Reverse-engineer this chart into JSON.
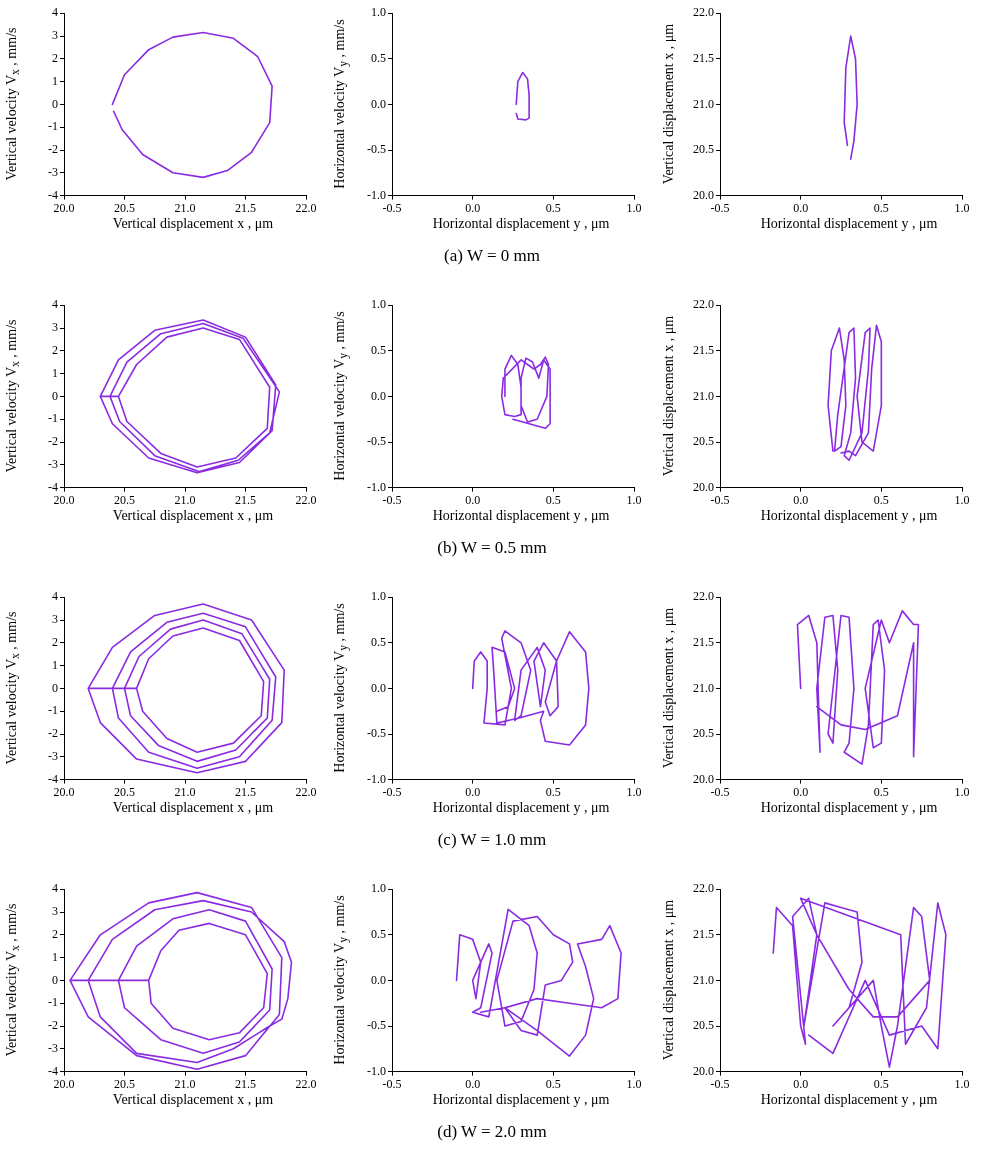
{
  "chart_data": [
    {
      "type": "line",
      "xlabel": "Vertical displacement x , μm",
      "ylabel": "Vertical velocity V$_{x}$ , mm/s",
      "xlim": [
        20,
        22
      ],
      "ylim": [
        -4,
        4
      ],
      "xticks": [
        {
          "value": 20,
          "label": "20.0"
        },
        {
          "value": 20.5,
          "label": "20.5"
        },
        {
          "value": 21,
          "label": "21.0"
        },
        {
          "value": 21.5,
          "label": "21.5"
        },
        {
          "value": 22,
          "label": "22.0"
        }
      ],
      "yticks": [
        {
          "value": -4,
          "label": "-4"
        },
        {
          "value": -3,
          "label": "-3"
        },
        {
          "value": -2,
          "label": "-2"
        },
        {
          "value": -1,
          "label": "-1"
        },
        {
          "value": 0,
          "label": "0"
        },
        {
          "value": 1,
          "label": "1"
        },
        {
          "value": 2,
          "label": "2"
        },
        {
          "value": 3,
          "label": "3"
        },
        {
          "value": 4,
          "label": "4"
        }
      ],
      "grid": false,
      "legend": false,
      "marker": "none",
      "line_style": "solid",
      "series": [
        {
          "color": "#8a2be2",
          "x": [
            20.4,
            20.5,
            20.7,
            20.9,
            21.15,
            21.4,
            21.6,
            21.72,
            21.7,
            21.55,
            21.35,
            21.15,
            20.9,
            20.65,
            20.48,
            20.41
          ],
          "values": [
            0,
            1.3,
            2.4,
            2.95,
            3.15,
            2.9,
            2.1,
            0.8,
            -0.8,
            -2.1,
            -2.9,
            -3.2,
            -3.0,
            -2.2,
            -1.1,
            -0.3
          ]
        }
      ]
    },
    {
      "type": "line",
      "xlabel": "Horizontal displacement y , μm",
      "ylabel": "Horizontal velocity V$_{y}$ , mm/s",
      "xlim": [
        -0.5,
        1
      ],
      "ylim": [
        -1,
        1
      ],
      "xticks": [
        {
          "value": -0.5,
          "label": "-0.5"
        },
        {
          "value": 0,
          "label": "0.0"
        },
        {
          "value": 0.5,
          "label": "0.5"
        },
        {
          "value": 1,
          "label": "1.0"
        }
      ],
      "yticks": [
        {
          "value": -1,
          "label": "-1.0"
        },
        {
          "value": -0.5,
          "label": "-0.5"
        },
        {
          "value": 0,
          "label": "0.0"
        },
        {
          "value": 0.5,
          "label": "0.5"
        },
        {
          "value": 1,
          "label": "1.0"
        }
      ],
      "grid": false,
      "legend": false,
      "marker": "none",
      "line_style": "solid",
      "annotations": [
        "(a) W = 0 mm"
      ],
      "series": [
        {
          "color": "#8a2be2",
          "x": [
            0.27,
            0.28,
            0.31,
            0.34,
            0.35,
            0.35,
            0.33,
            0.28,
            0.27
          ],
          "values": [
            0,
            0.25,
            0.35,
            0.28,
            0.1,
            -0.15,
            -0.17,
            -0.16,
            -0.1
          ]
        }
      ]
    },
    {
      "type": "line",
      "xlabel": "Horizontal displacement y , μm",
      "ylabel": "Vertical displacement x , μm",
      "xlim": [
        -0.5,
        1
      ],
      "ylim": [
        20,
        22
      ],
      "xticks": [
        {
          "value": -0.5,
          "label": "-0.5"
        },
        {
          "value": 0,
          "label": "0.0"
        },
        {
          "value": 0.5,
          "label": "0.5"
        },
        {
          "value": 1,
          "label": "1.0"
        }
      ],
      "yticks": [
        {
          "value": 20,
          "label": "20.0"
        },
        {
          "value": 20.5,
          "label": "20.5"
        },
        {
          "value": 21,
          "label": "21.0"
        },
        {
          "value": 21.5,
          "label": "21.5"
        },
        {
          "value": 22,
          "label": "22.0"
        }
      ],
      "grid": false,
      "legend": false,
      "marker": "none",
      "line_style": "solid",
      "series": [
        {
          "color": "#8a2be2",
          "x": [
            0.29,
            0.27,
            0.28,
            0.31,
            0.34,
            0.35,
            0.33,
            0.31
          ],
          "values": [
            20.55,
            20.8,
            21.4,
            21.75,
            21.5,
            21.0,
            20.6,
            20.4
          ]
        }
      ]
    },
    {
      "type": "line",
      "xlabel": "Vertical displacement x , μm",
      "ylabel": "Vertical velocity V$_{x}$ , mm/s",
      "xlim": [
        20,
        22
      ],
      "ylim": [
        -4,
        4
      ],
      "xticks": [
        {
          "value": 20,
          "label": "20.0"
        },
        {
          "value": 20.5,
          "label": "20.5"
        },
        {
          "value": 21,
          "label": "21.0"
        },
        {
          "value": 21.5,
          "label": "21.5"
        },
        {
          "value": 22,
          "label": "22.0"
        }
      ],
      "yticks": [
        {
          "value": -4,
          "label": "-4"
        },
        {
          "value": -3,
          "label": "-3"
        },
        {
          "value": -2,
          "label": "-2"
        },
        {
          "value": -1,
          "label": "-1"
        },
        {
          "value": 0,
          "label": "0"
        },
        {
          "value": 1,
          "label": "1"
        },
        {
          "value": 2,
          "label": "2"
        },
        {
          "value": 3,
          "label": "3"
        },
        {
          "value": 4,
          "label": "4"
        }
      ],
      "grid": false,
      "legend": false,
      "marker": "none",
      "line_style": "solid",
      "series": [
        {
          "color": "#8a2be2",
          "x": [
            20.3,
            20.45,
            20.75,
            21.15,
            21.5,
            21.75,
            21.72,
            21.45,
            21.1,
            20.7,
            20.4,
            20.3,
            20.45,
            20.6,
            20.85,
            21.15,
            21.45,
            21.7,
            21.68,
            21.42,
            21.1,
            20.8,
            20.52,
            20.45,
            20.38,
            20.52,
            20.8,
            21.15,
            21.48,
            21.78,
            21.7,
            21.44,
            21.12,
            20.75,
            20.46,
            20.38
          ],
          "values": [
            0,
            1.6,
            2.9,
            3.35,
            2.6,
            0.5,
            -1.5,
            -2.9,
            -3.35,
            -2.7,
            -1.2,
            0,
            0,
            1.4,
            2.6,
            3.0,
            2.5,
            0.4,
            -1.4,
            -2.7,
            -3.1,
            -2.5,
            -1.1,
            0,
            0,
            1.5,
            2.75,
            3.2,
            2.55,
            0.2,
            -1.6,
            -2.8,
            -3.3,
            -2.6,
            -1.1,
            0
          ]
        }
      ]
    },
    {
      "type": "line",
      "xlabel": "Horizontal displacement y , μm",
      "ylabel": "Horizontal velocity V$_{y}$ , mm/s",
      "xlim": [
        -0.5,
        1
      ],
      "ylim": [
        -1,
        1
      ],
      "xticks": [
        {
          "value": -0.5,
          "label": "-0.5"
        },
        {
          "value": 0,
          "label": "0.0"
        },
        {
          "value": 0.5,
          "label": "0.5"
        },
        {
          "value": 1,
          "label": "1.0"
        }
      ],
      "yticks": [
        {
          "value": -1,
          "label": "-1.0"
        },
        {
          "value": -0.5,
          "label": "-0.5"
        },
        {
          "value": 0,
          "label": "0.0"
        },
        {
          "value": 0.5,
          "label": "0.5"
        },
        {
          "value": 1,
          "label": "1.0"
        }
      ],
      "grid": false,
      "legend": false,
      "marker": "none",
      "line_style": "solid",
      "annotations": [
        "(b) W = 0.5 mm"
      ],
      "series": [
        {
          "color": "#8a2be2",
          "x": [
            0.2,
            0.2,
            0.24,
            0.28,
            0.3,
            0.3,
            0.26,
            0.2,
            0.18,
            0.19,
            0.3,
            0.34,
            0.38,
            0.42,
            0.45,
            0.47,
            0.46,
            0.4,
            0.34,
            0.3,
            0.3,
            0.33,
            0.37,
            0.41,
            0.44,
            0.48,
            0.48,
            0.45,
            0.35,
            0.25
          ],
          "values": [
            0,
            0.3,
            0.45,
            0.35,
            0.1,
            -0.2,
            -0.22,
            -0.2,
            0,
            0.2,
            0.4,
            0.35,
            0.3,
            0.35,
            0.43,
            0.35,
            0,
            -0.25,
            -0.28,
            -0.1,
            0.2,
            0.42,
            0.38,
            0.2,
            0.4,
            0.3,
            -0.3,
            -0.35,
            -0.3,
            -0.25
          ]
        }
      ]
    },
    {
      "type": "line",
      "xlabel": "Horizontal displacement y , μm",
      "ylabel": "Vertical displacement x , μm",
      "xlim": [
        -0.5,
        1
      ],
      "ylim": [
        20,
        22
      ],
      "xticks": [
        {
          "value": -0.5,
          "label": "-0.5"
        },
        {
          "value": 0,
          "label": "0.0"
        },
        {
          "value": 0.5,
          "label": "0.5"
        },
        {
          "value": 1,
          "label": "1.0"
        }
      ],
      "yticks": [
        {
          "value": 20,
          "label": "20.0"
        },
        {
          "value": 20.5,
          "label": "20.5"
        },
        {
          "value": 21,
          "label": "21.0"
        },
        {
          "value": 21.5,
          "label": "21.5"
        },
        {
          "value": 22,
          "label": "22.0"
        }
      ],
      "grid": false,
      "legend": false,
      "marker": "none",
      "line_style": "solid",
      "series": [
        {
          "color": "#8a2be2",
          "x": [
            0.2,
            0.17,
            0.19,
            0.24,
            0.27,
            0.28,
            0.25,
            0.21,
            0.23,
            0.3,
            0.33,
            0.34,
            0.31,
            0.27,
            0.3,
            0.38,
            0.42,
            0.43,
            0.4,
            0.35,
            0.38,
            0.45,
            0.5,
            0.5,
            0.47,
            0.44,
            0.42,
            0.34,
            0.3,
            0.25
          ],
          "values": [
            20.4,
            20.9,
            21.5,
            21.75,
            21.4,
            20.9,
            20.45,
            20.4,
            20.8,
            21.7,
            21.75,
            21.2,
            20.6,
            20.35,
            20.3,
            20.6,
            21.3,
            21.75,
            21.7,
            21.0,
            20.5,
            20.4,
            20.9,
            21.6,
            21.78,
            21.3,
            20.6,
            20.35,
            20.4,
            20.38
          ]
        }
      ]
    },
    {
      "type": "line",
      "xlabel": "Vertical displacement x , μm",
      "ylabel": "Vertical velocity V$_{x}$ , mm/s",
      "xlim": [
        20,
        22
      ],
      "ylim": [
        -4,
        4
      ],
      "xticks": [
        {
          "value": 20,
          "label": "20.0"
        },
        {
          "value": 20.5,
          "label": "20.5"
        },
        {
          "value": 21,
          "label": "21.0"
        },
        {
          "value": 21.5,
          "label": "21.5"
        },
        {
          "value": 22,
          "label": "22.0"
        }
      ],
      "yticks": [
        {
          "value": -4,
          "label": "-4"
        },
        {
          "value": -3,
          "label": "-3"
        },
        {
          "value": -2,
          "label": "-2"
        },
        {
          "value": -1,
          "label": "-1"
        },
        {
          "value": 0,
          "label": "0"
        },
        {
          "value": 1,
          "label": "1"
        },
        {
          "value": 2,
          "label": "2"
        },
        {
          "value": 3,
          "label": "3"
        },
        {
          "value": 4,
          "label": "4"
        }
      ],
      "grid": false,
      "legend": false,
      "marker": "none",
      "line_style": "solid",
      "series": [
        {
          "color": "#8a2be2",
          "x": [
            20.2,
            20.4,
            20.75,
            21.15,
            21.55,
            21.82,
            21.8,
            21.5,
            21.1,
            20.6,
            20.3,
            20.2,
            20.6,
            20.7,
            20.9,
            21.15,
            21.45,
            21.65,
            21.63,
            21.4,
            21.1,
            20.85,
            20.65,
            20.6,
            20.4,
            20.55,
            20.85,
            21.15,
            21.5,
            21.75,
            21.72,
            21.45,
            21.1,
            20.7,
            20.45,
            20.4,
            20.5,
            20.62,
            20.88,
            21.15,
            21.47,
            21.7,
            21.68,
            21.42,
            21.1,
            20.78,
            20.55,
            20.5
          ],
          "values": [
            0,
            1.8,
            3.2,
            3.7,
            3.0,
            0.8,
            -1.5,
            -3.2,
            -3.7,
            -3.1,
            -1.5,
            0,
            0,
            1.3,
            2.3,
            2.65,
            2.1,
            0.3,
            -1.2,
            -2.4,
            -2.8,
            -2.2,
            -1.0,
            0,
            0,
            1.6,
            2.9,
            3.3,
            2.7,
            0.5,
            -1.4,
            -3.0,
            -3.5,
            -2.8,
            -1.3,
            0,
            0,
            1.4,
            2.6,
            3.0,
            2.4,
            0.4,
            -1.3,
            -2.7,
            -3.2,
            -2.5,
            -1.2,
            0
          ]
        }
      ]
    },
    {
      "type": "line",
      "xlabel": "Horizontal displacement y , μm",
      "ylabel": "Horizontal velocity V$_{y}$ , mm/s",
      "xlim": [
        -0.5,
        1
      ],
      "ylim": [
        -1,
        1
      ],
      "xticks": [
        {
          "value": -0.5,
          "label": "-0.5"
        },
        {
          "value": 0,
          "label": "0.0"
        },
        {
          "value": 0.5,
          "label": "0.5"
        },
        {
          "value": 1,
          "label": "1.0"
        }
      ],
      "yticks": [
        {
          "value": -1,
          "label": "-1.0"
        },
        {
          "value": -0.5,
          "label": "-0.5"
        },
        {
          "value": 0,
          "label": "0.0"
        },
        {
          "value": 0.5,
          "label": "0.5"
        },
        {
          "value": 1,
          "label": "1.0"
        }
      ],
      "grid": false,
      "legend": false,
      "marker": "none",
      "line_style": "solid",
      "annotations": [
        "(c) W = 1.0 mm"
      ],
      "series": [
        {
          "color": "#8a2be2",
          "x": [
            0,
            0.01,
            0.05,
            0.09,
            0.09,
            0.07,
            0.2,
            0.24,
            0.18,
            0.2,
            0.3,
            0.36,
            0.3,
            0.26,
            0.3,
            0.4,
            0.45,
            0.42,
            0.38,
            0.44,
            0.52,
            0.53,
            0.48,
            0.45,
            0.52,
            0.6,
            0.7,
            0.72,
            0.7,
            0.6,
            0.45,
            0.42,
            0.44,
            0.3,
            0.15,
            0.13,
            0.12,
            0.2,
            0.26,
            0.22,
            0.15
          ],
          "values": [
            0,
            0.3,
            0.4,
            0.3,
            0,
            -0.38,
            -0.4,
            0,
            0.55,
            0.63,
            0.5,
            0.2,
            -0.3,
            -0.35,
            0.2,
            0.45,
            0.2,
            -0.2,
            0.3,
            0.5,
            0.3,
            -0.2,
            -0.3,
            -0.15,
            0.3,
            0.62,
            0.4,
            0,
            -0.4,
            -0.62,
            -0.58,
            -0.35,
            -0.25,
            -0.32,
            -0.38,
            0.2,
            0.45,
            0.4,
            0,
            -0.2,
            -0.25
          ]
        }
      ]
    },
    {
      "type": "line",
      "xlabel": "Horizontal displacement y , μm",
      "ylabel": "Vertical displacement x , μm",
      "xlim": [
        -0.5,
        1
      ],
      "ylim": [
        20,
        22
      ],
      "xticks": [
        {
          "value": -0.5,
          "label": "-0.5"
        },
        {
          "value": 0,
          "label": "0.0"
        },
        {
          "value": 0.5,
          "label": "0.5"
        },
        {
          "value": 1,
          "label": "1.0"
        }
      ],
      "yticks": [
        {
          "value": 20,
          "label": "20.0"
        },
        {
          "value": 20.5,
          "label": "20.5"
        },
        {
          "value": 21,
          "label": "21.0"
        },
        {
          "value": 21.5,
          "label": "21.5"
        },
        {
          "value": 22,
          "label": "22.0"
        }
      ],
      "grid": false,
      "legend": false,
      "marker": "none",
      "line_style": "solid",
      "series": [
        {
          "color": "#8a2be2",
          "x": [
            0,
            -0.02,
            0.05,
            0.1,
            0.12,
            0.1,
            0.15,
            0.2,
            0.23,
            0.2,
            0.17,
            0.25,
            0.3,
            0.33,
            0.3,
            0.27,
            0.38,
            0.42,
            0.45,
            0.48,
            0.52,
            0.5,
            0.45,
            0.4,
            0.5,
            0.55,
            0.63,
            0.7,
            0.73,
            0.7,
            0.7,
            0.6,
            0.4,
            0.25,
            0.1
          ],
          "values": [
            21,
            21.7,
            21.8,
            21.5,
            20.3,
            21,
            21.78,
            21.8,
            21.2,
            20.4,
            20.5,
            21.8,
            21.78,
            21,
            20.4,
            20.3,
            20.17,
            20.6,
            21.7,
            21.75,
            21.2,
            20.4,
            20.35,
            21,
            21.75,
            21.5,
            21.85,
            21.7,
            21.7,
            20.25,
            21.5,
            20.7,
            20.55,
            20.6,
            20.8
          ]
        }
      ]
    },
    {
      "type": "line",
      "xlabel": "Vertical displacement x , μm",
      "ylabel": "Vertical velocity V$_{x}$ , mm/s",
      "xlim": [
        20,
        22
      ],
      "ylim": [
        -4,
        4
      ],
      "xticks": [
        {
          "value": 20,
          "label": "20.0"
        },
        {
          "value": 20.5,
          "label": "20.5"
        },
        {
          "value": 21,
          "label": "21.0"
        },
        {
          "value": 21.5,
          "label": "21.5"
        },
        {
          "value": 22,
          "label": "22.0"
        }
      ],
      "yticks": [
        {
          "value": -4,
          "label": "-4"
        },
        {
          "value": -3,
          "label": "-3"
        },
        {
          "value": -2,
          "label": "-2"
        },
        {
          "value": -1,
          "label": "-1"
        },
        {
          "value": 0,
          "label": "0"
        },
        {
          "value": 1,
          "label": "1"
        },
        {
          "value": 2,
          "label": "2"
        },
        {
          "value": 3,
          "label": "3"
        },
        {
          "value": 4,
          "label": "4"
        }
      ],
      "grid": false,
      "legend": false,
      "marker": "none",
      "line_style": "solid",
      "series": [
        {
          "color": "#8a2be2",
          "x": [
            20.05,
            20.3,
            20.7,
            21.1,
            21.55,
            21.8,
            21.78,
            21.5,
            21.1,
            20.6,
            20.2,
            20.05,
            20.7,
            20.8,
            20.95,
            21.2,
            21.5,
            21.68,
            21.65,
            21.45,
            21.2,
            20.9,
            20.72,
            20.7,
            20.2,
            20.4,
            20.75,
            21.15,
            21.55,
            21.82,
            21.88,
            21.85,
            21.8,
            21.7,
            21.4,
            21.1,
            20.6,
            20.3,
            20.2,
            20.45,
            20.6,
            20.9,
            21.2,
            21.5,
            21.72,
            21.7,
            21.45,
            21.15,
            20.8,
            20.5,
            20.45
          ],
          "values": [
            0,
            2,
            3.4,
            3.85,
            3.2,
            1,
            -1.5,
            -3.3,
            -3.9,
            -3.3,
            -1.6,
            0,
            0,
            1.3,
            2.2,
            2.5,
            2,
            0.3,
            -1.2,
            -2.3,
            -2.6,
            -2.1,
            -1,
            0,
            0,
            1.8,
            3.1,
            3.5,
            3,
            1.7,
            0.8,
            -0.8,
            -1.7,
            -2,
            -3,
            -3.6,
            -3.2,
            -1.6,
            0,
            0,
            1.5,
            2.7,
            3.1,
            2.6,
            0.5,
            -1.3,
            -2.7,
            -3.2,
            -2.6,
            -1.2,
            0
          ]
        }
      ]
    },
    {
      "type": "line",
      "xlabel": "Horizontal displacement y , μm",
      "ylabel": "Horizontal velocity V$_{y}$ , mm/s",
      "xlim": [
        -0.5,
        1
      ],
      "ylim": [
        -1,
        1
      ],
      "xticks": [
        {
          "value": -0.5,
          "label": "-0.5"
        },
        {
          "value": 0,
          "label": "0.0"
        },
        {
          "value": 0.5,
          "label": "0.5"
        },
        {
          "value": 1,
          "label": "1.0"
        }
      ],
      "yticks": [
        {
          "value": -1,
          "label": "-1.0"
        },
        {
          "value": -0.5,
          "label": "-0.5"
        },
        {
          "value": 0,
          "label": "0.0"
        },
        {
          "value": 0.5,
          "label": "0.5"
        },
        {
          "value": 1,
          "label": "1.0"
        }
      ],
      "grid": false,
      "legend": false,
      "marker": "none",
      "line_style": "solid",
      "annotations": [
        "(d) W = 2.0 mm"
      ],
      "series": [
        {
          "color": "#8a2be2",
          "x": [
            -0.1,
            -0.08,
            0,
            0.05,
            0.02,
            0,
            0.1,
            0.12,
            0.05,
            0,
            0.1,
            0.22,
            0.35,
            0.4,
            0.38,
            0.3,
            0.2,
            0.15,
            0.25,
            0.4,
            0.5,
            0.6,
            0.62,
            0.55,
            0.45,
            0.4,
            0.3,
            0.2,
            0.4,
            0.6,
            0.7,
            0.75,
            0.7,
            0.65,
            0.8,
            0.85,
            0.92,
            0.9,
            0.8,
            0.6,
            0.4,
            0.2,
            0.05
          ],
          "values": [
            0,
            0.5,
            0.45,
            0.2,
            -0.2,
            0,
            0.4,
            0.3,
            -0.3,
            -0.35,
            -0.4,
            0.78,
            0.6,
            0.3,
            -0.1,
            -0.45,
            -0.5,
            0,
            0.65,
            0.7,
            0.5,
            0.4,
            0.2,
            0,
            -0.05,
            -0.6,
            -0.55,
            -0.3,
            -0.55,
            -0.83,
            -0.6,
            -0.2,
            0.15,
            0.4,
            0.45,
            0.6,
            0.3,
            -0.2,
            -0.3,
            -0.25,
            -0.2,
            -0.3,
            -0.35
          ]
        }
      ]
    },
    {
      "type": "line",
      "xlabel": "Horizontal displacement y , μm",
      "ylabel": "Vertical displacement x , μm",
      "xlim": [
        -0.5,
        1
      ],
      "ylim": [
        20,
        22
      ],
      "xticks": [
        {
          "value": -0.5,
          "label": "-0.5"
        },
        {
          "value": 0,
          "label": "0.0"
        },
        {
          "value": 0.5,
          "label": "0.5"
        },
        {
          "value": 1,
          "label": "1.0"
        }
      ],
      "yticks": [
        {
          "value": 20,
          "label": "20.0"
        },
        {
          "value": 20.5,
          "label": "20.5"
        },
        {
          "value": 21,
          "label": "21.0"
        },
        {
          "value": 21.5,
          "label": "21.5"
        },
        {
          "value": 22,
          "label": "22.0"
        }
      ],
      "grid": false,
      "legend": false,
      "marker": "none",
      "line_style": "solid",
      "series": [
        {
          "color": "#8a2be2",
          "x": [
            -0.17,
            -0.15,
            -0.05,
            0,
            0.03,
            -0.05,
            0.05,
            0.1,
            0.02,
            0.15,
            0.25,
            0.35,
            0.38,
            0.3,
            0.2,
            0.45,
            0.5,
            0.55,
            0.6,
            0.7,
            0.75,
            0.8,
            0.6,
            0.45,
            0.3,
            0.1,
            0,
            0.62,
            0.65,
            0.78,
            0.85,
            0.9,
            0.85,
            0.75,
            0.55,
            0.5,
            0.4,
            0.2,
            0.05
          ],
          "values": [
            21.3,
            21.8,
            21.6,
            20.5,
            20.3,
            21.7,
            21.9,
            21.5,
            20.5,
            21.85,
            21.8,
            21.75,
            21.2,
            20.7,
            20.5,
            21,
            20.5,
            20.05,
            20.5,
            21.8,
            21.7,
            21,
            20.6,
            20.6,
            20.9,
            21.5,
            21.9,
            21.5,
            20.3,
            20.7,
            21.85,
            21.5,
            20.25,
            20.5,
            20.4,
            20.6,
            21,
            20.2,
            20.4
          ]
        }
      ]
    }
  ]
}
